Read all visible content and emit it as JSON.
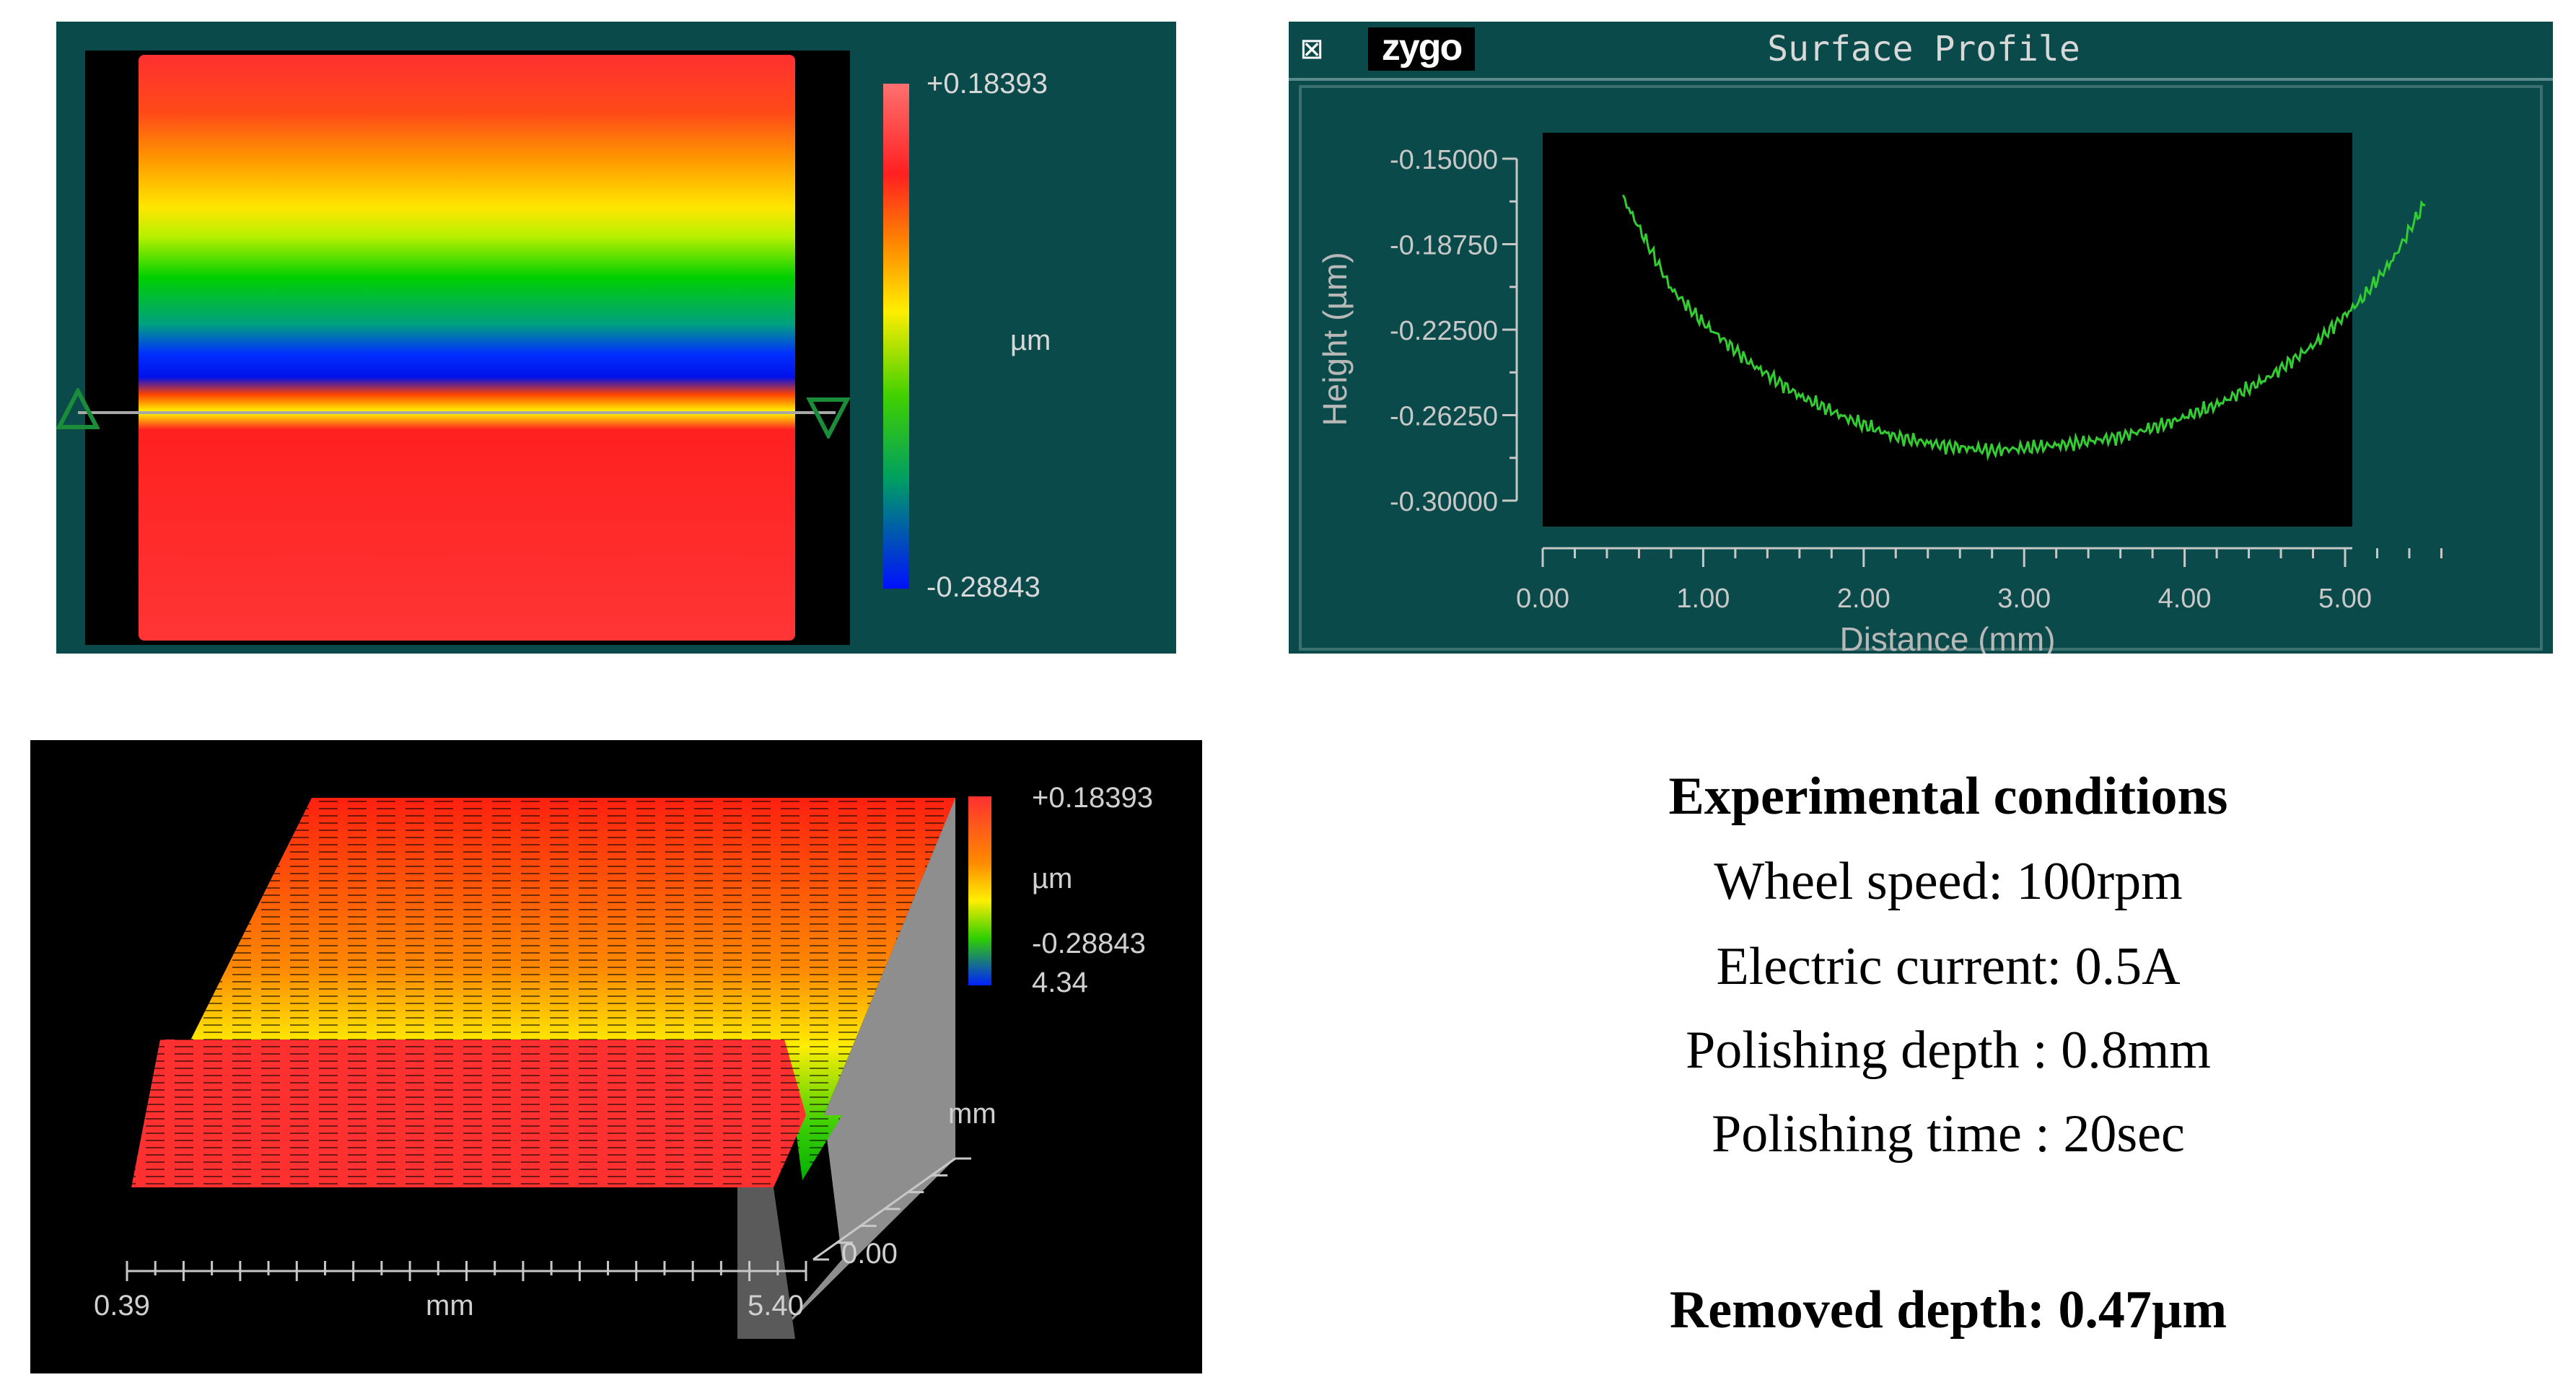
{
  "map2d": {
    "scale_max": "+0.18393",
    "scale_min": "-0.28843",
    "unit": "µm"
  },
  "profile": {
    "close_glyph": "⊠",
    "brand": "zygo",
    "title": "Surface Profile",
    "ylabel": "Height (µm)",
    "xlabel": "Distance (mm)",
    "y_ticks": [
      "-0.15000",
      "-0.18750",
      "-0.22500",
      "-0.26250",
      "-0.30000"
    ],
    "x_ticks": [
      "0.00",
      "1.00",
      "2.00",
      "3.00",
      "4.00",
      "5.00"
    ]
  },
  "chart_data": {
    "type": "line",
    "title": "Surface Profile",
    "xlabel": "Distance (mm)",
    "ylabel": "Height (µm)",
    "xlim": [
      0,
      5.8
    ],
    "ylim": [
      -0.3,
      -0.15
    ],
    "series": [
      {
        "name": "profile",
        "x": [
          0.5,
          0.8,
          1.0,
          1.3,
          1.6,
          1.9,
          2.2,
          2.5,
          2.8,
          3.0,
          3.3,
          3.6,
          3.9,
          4.2,
          4.5,
          4.8,
          5.1,
          5.3,
          5.5
        ],
        "y": [
          -0.167,
          -0.207,
          -0.222,
          -0.24,
          -0.254,
          -0.264,
          -0.272,
          -0.276,
          -0.278,
          -0.277,
          -0.275,
          -0.272,
          -0.266,
          -0.258,
          -0.247,
          -0.232,
          -0.212,
          -0.194,
          -0.169
        ]
      }
    ]
  },
  "map3d": {
    "scale_max": "+0.18393",
    "unit": "µm",
    "scale_min": "-0.28843",
    "y_max": "4.34",
    "y_unit": "mm",
    "y_min": "0.00",
    "x_min": "0.39",
    "x_unit": "mm",
    "x_max": "5.40"
  },
  "conditions": {
    "heading": "Experimental conditions",
    "wheel_speed": "Wheel speed: 100rpm",
    "electric_current": "Electric current: 0.5A",
    "polishing_depth": "Polishing depth : 0.8mm",
    "polishing_time": "Polishing time : 20sec",
    "removed_depth": "Removed depth: 0.47µm"
  },
  "colors": {
    "panel": "#0a4a4a",
    "trace": "#33cc33",
    "red": "#ff2a1a",
    "yellow": "#ffff00",
    "green": "#00c800",
    "blue": "#0010ff"
  }
}
